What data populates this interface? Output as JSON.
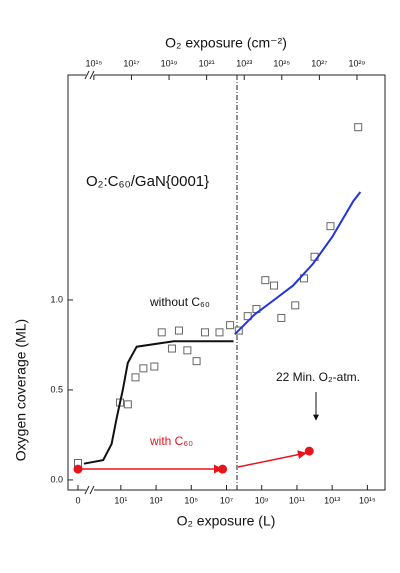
{
  "chart_data": {
    "type": "scatter",
    "title": "O₂:C₆₀/GaN{0001}",
    "xlabel": "O₂ exposure (L)",
    "x2label": "O₂ exposure (cm⁻²)",
    "ylabel": "Oxygen coverage (ML)",
    "annotations": [
      "without C₆₀",
      "with C₆₀",
      "22 Min. O₂-atm."
    ],
    "xlog": true,
    "xlim": [
      0.01,
      1e+16
    ],
    "xticks": [
      0,
      {
        "value": 10,
        "label": "10¹"
      },
      {
        "value": 1000,
        "label": "10³"
      },
      {
        "value": 100000,
        "label": "10⁵"
      },
      {
        "value": 10000000,
        "label": "10⁷"
      },
      {
        "value": 1000000000,
        "label": "10⁹"
      },
      {
        "value": 100000000000,
        "label": "10¹¹"
      },
      {
        "value": 10000000000000,
        "label": "10¹³"
      },
      {
        "value": 1000000000000000,
        "label": "10¹⁵"
      }
    ],
    "x2log": true,
    "x2lim": [
      42000000000000.0,
      3.1e+30
    ],
    "x2ticks": [
      {
        "value": 1000000000000000.0,
        "label": "10¹⁵"
      },
      {
        "value": 1e+17,
        "label": "10¹⁷"
      },
      {
        "value": 1e+19,
        "label": "10¹⁹"
      },
      {
        "value": 1e+21,
        "label": "10²¹"
      },
      {
        "value": 1e+23,
        "label": "10²³"
      },
      {
        "value": 1e+25,
        "label": "10²⁵"
      },
      {
        "value": 1e+27,
        "label": "10²⁷"
      },
      {
        "value": 1e+29,
        "label": "10²⁹"
      }
    ],
    "ylim": [
      -0.056,
      2.25
    ],
    "yticks": [
      {
        "value": 0,
        "label": "0.0"
      },
      0.5,
      {
        "value": 1,
        "label": "1.0"
      }
    ],
    "series": [
      {
        "type": "scatter",
        "marker": "square",
        "color": "#666666",
        "x": [
          0,
          9,
          25,
          68,
          190,
          800,
          2100,
          8000,
          20000,
          60000,
          200000,
          600000,
          4000000,
          16000000,
          50000000,
          160000000,
          500000000,
          1600000000,
          5000000000,
          13000000000,
          80000000000,
          250000000000,
          1000000000000,
          8000000000000,
          300000000000000
        ],
        "values": [
          0.094,
          0.43,
          0.42,
          0.57,
          0.62,
          0.63,
          0.82,
          0.73,
          0.83,
          0.72,
          0.66,
          0.82,
          0.82,
          0.86,
          0.83,
          0.91,
          0.95,
          1.11,
          1.08,
          0.9,
          0.97,
          1.12,
          1.24,
          1.41,
          1.96
        ]
      },
      {
        "type": "scatter",
        "marker": "circle",
        "color": "#e8141c",
        "x": [
          0,
          6000000,
          500000000000
        ],
        "values": [
          0.06,
          0.06,
          0.16
        ]
      },
      {
        "type": "line",
        "color": "#111111",
        "x": [
          0.08,
          1,
          3,
          6,
          13,
          25,
          80,
          10000,
          25000000
        ],
        "values": [
          0.09,
          0.11,
          0.2,
          0.35,
          0.5,
          0.65,
          0.74,
          0.77,
          0.77
        ]
      },
      {
        "type": "line",
        "color": "#2233dd",
        "x": [
          30000000,
          400000000,
          5000000000,
          60000000000,
          800000000000,
          10000000000000,
          160000000000000,
          400000000000000
        ],
        "values": [
          0.81,
          0.92,
          1.0,
          1.08,
          1.2,
          1.35,
          1.55,
          1.6
        ]
      }
    ]
  }
}
